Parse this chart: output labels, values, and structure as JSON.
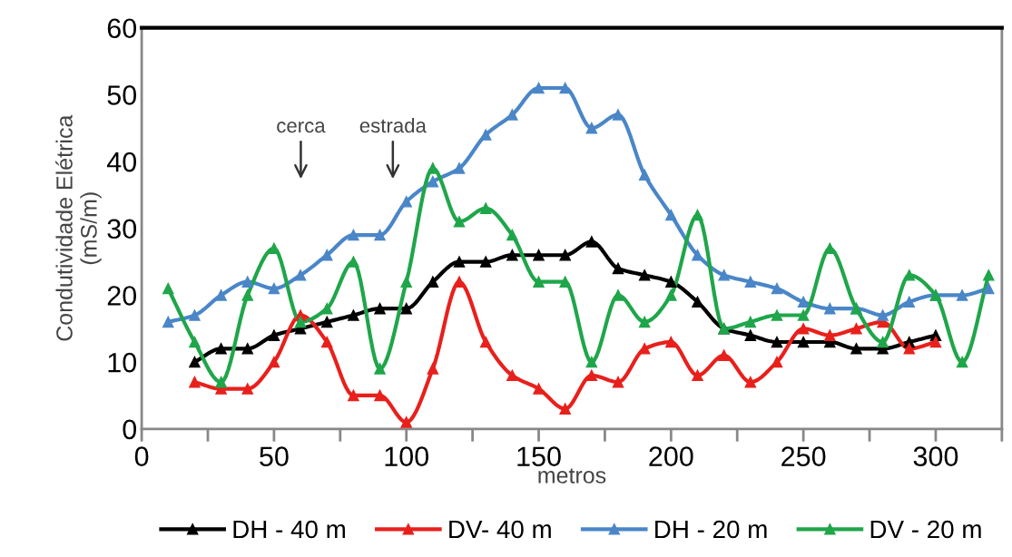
{
  "chart_data": {
    "type": "line",
    "xlabel": "metros",
    "ylabel": "Condutividade Elétrica\n(mS/m)",
    "xlim": [
      0,
      325
    ],
    "ylim": [
      0,
      60
    ],
    "xticks": [
      0,
      {
        "value": 25,
        "label": null
      },
      50,
      {
        "value": 75,
        "label": null
      },
      100,
      {
        "value": 125,
        "label": null
      },
      150,
      {
        "value": 175,
        "label": null
      },
      200,
      {
        "value": 225,
        "label": null
      },
      250,
      {
        "value": 275,
        "label": null
      },
      300,
      {
        "value": 325,
        "label": null
      }
    ],
    "yticks": [
      0,
      10,
      20,
      30,
      40,
      50,
      60
    ],
    "grid": false,
    "legend": "bottom",
    "marker": "triangle",
    "line_style": "solid",
    "annotations": [
      "cerca",
      "estrada"
    ],
    "series": [
      {
        "name": "DH - 40 m",
        "color": "#000000",
        "x": [
          20,
          30,
          40,
          50,
          60,
          70,
          80,
          90,
          100,
          110,
          120,
          130,
          140,
          150,
          160,
          170,
          180,
          190,
          200,
          210,
          220,
          230,
          240,
          250,
          260,
          270,
          280,
          290,
          300
        ],
        "values": [
          10,
          12,
          12,
          14,
          15,
          16,
          17,
          18,
          18,
          22,
          25,
          25,
          26,
          26,
          26,
          28,
          24,
          23,
          22,
          19,
          15,
          14,
          13,
          13,
          13,
          12,
          12,
          13,
          14
        ]
      },
      {
        "name": "DV- 40 m",
        "color": "#e8201c",
        "x": [
          20,
          30,
          40,
          50,
          60,
          70,
          80,
          90,
          100,
          110,
          120,
          130,
          140,
          150,
          160,
          170,
          180,
          190,
          200,
          210,
          220,
          230,
          240,
          250,
          260,
          270,
          280,
          290,
          300
        ],
        "values": [
          7,
          6,
          6,
          10,
          17,
          13,
          5,
          5,
          1,
          9,
          22,
          13,
          8,
          6,
          3,
          8,
          7,
          12,
          13,
          8,
          11,
          7,
          10,
          15,
          14,
          15,
          16,
          12,
          13
        ]
      },
      {
        "name": "DH - 20 m",
        "color": "#4a86c8",
        "x": [
          10,
          20,
          30,
          40,
          50,
          60,
          70,
          80,
          90,
          100,
          110,
          120,
          130,
          140,
          150,
          160,
          170,
          180,
          190,
          200,
          210,
          220,
          230,
          240,
          250,
          260,
          270,
          280,
          290,
          300,
          310,
          320
        ],
        "values": [
          16,
          17,
          20,
          22,
          21,
          23,
          26,
          29,
          29,
          34,
          37,
          39,
          44,
          47,
          51,
          51,
          45,
          47,
          38,
          32,
          26,
          23,
          22,
          21,
          19,
          18,
          18,
          17,
          19,
          20,
          20,
          21
        ]
      },
      {
        "name": "DV - 20 m",
        "color": "#1fa64a",
        "x": [
          10,
          20,
          30,
          40,
          50,
          60,
          70,
          80,
          90,
          100,
          110,
          120,
          130,
          140,
          150,
          160,
          170,
          180,
          190,
          200,
          210,
          220,
          230,
          240,
          250,
          260,
          270,
          280,
          290,
          300,
          310,
          320
        ],
        "values": [
          21,
          13,
          7,
          20,
          27,
          16,
          18,
          25,
          9,
          22,
          39,
          31,
          33,
          29,
          22,
          22,
          10,
          20,
          16,
          20,
          32,
          15,
          16,
          17,
          17,
          27,
          18,
          13,
          23,
          20,
          10,
          23
        ]
      }
    ]
  }
}
